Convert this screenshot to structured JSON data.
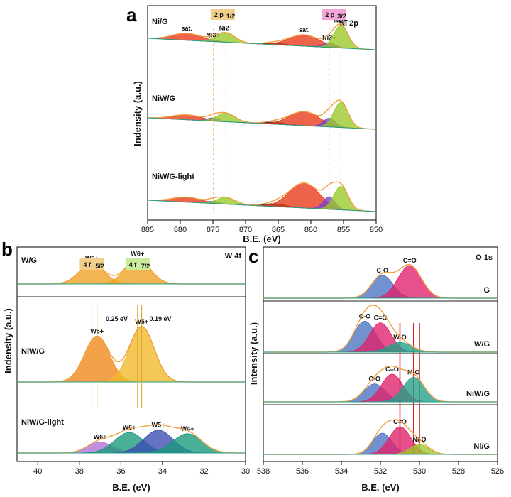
{
  "panels": {
    "a": {
      "letter": "a",
      "corner_label": "Ni 2p",
      "xlabel": "B.E. (eV)",
      "ylabel": "Indensity (a.u.)"
    },
    "b": {
      "letter": "b",
      "corner_label": "W 4f",
      "xlabel": "B.E. (eV)",
      "ylabel": "Indensity (a.u.)"
    },
    "c": {
      "letter": "c",
      "corner_label": "O 1s",
      "xlabel": "B.E. (eV)",
      "ylabel": "Intensity (a.u.)"
    }
  },
  "chart_data": [
    {
      "id": "a",
      "type": "area",
      "title": "Ni 2p",
      "xlabel": "B.E. (eV)",
      "ylabel": "Indensity (a.u.)",
      "x_reversed": true,
      "xlim": [
        885,
        850
      ],
      "xticks": [
        885,
        880,
        875,
        870,
        865,
        860,
        855,
        850
      ],
      "header_tags": [
        {
          "text": "2 p",
          "sub": "1/2",
          "x": 873.5,
          "color": "#f2cf8c"
        },
        {
          "text": "2 p",
          "sub": "3/2",
          "x": 856.5,
          "color": "#f2a6d8"
        }
      ],
      "ref_lines": [
        {
          "x": 874.9,
          "color": "#f0a040"
        },
        {
          "x": 873.0,
          "color": "#f0a040"
        },
        {
          "x": 857.2,
          "color": "#d898e8"
        },
        {
          "x": 855.4,
          "color": "#d898e8"
        }
      ],
      "series": [
        {
          "name": "Ni/G",
          "peaks": [
            {
              "x": 879.0,
              "h": 0.45,
              "w": 2.2,
              "color": "#e83818",
              "label": "sat."
            },
            {
              "x": 875.0,
              "h": 0.1,
              "w": 0.9,
              "color": "#7840d0",
              "label": "Ni3+"
            },
            {
              "x": 873.0,
              "h": 0.6,
              "w": 1.4,
              "color": "#98c828",
              "label": "Ni2+"
            },
            {
              "x": 865.5,
              "h": 0.1,
              "w": 1.6,
              "color": "#202020",
              "label": ""
            },
            {
              "x": 861.0,
              "h": 0.72,
              "w": 2.3,
              "color": "#e83818",
              "label": "sat."
            },
            {
              "x": 857.2,
              "h": 0.3,
              "w": 0.9,
              "color": "#7840d0",
              "label": "Ni3+"
            },
            {
              "x": 855.4,
              "h": 1.45,
              "w": 1.1,
              "color": "#98c828",
              "label": "Ni2+"
            }
          ]
        },
        {
          "name": "NiW/G",
          "peaks": [
            {
              "x": 879.0,
              "h": 0.32,
              "w": 2.2,
              "color": "#e83818",
              "label": ""
            },
            {
              "x": 875.0,
              "h": 0.2,
              "w": 0.9,
              "color": "#7840d0",
              "label": ""
            },
            {
              "x": 873.0,
              "h": 0.55,
              "w": 1.4,
              "color": "#98c828",
              "label": ""
            },
            {
              "x": 865.5,
              "h": 0.13,
              "w": 1.6,
              "color": "#202020",
              "label": ""
            },
            {
              "x": 861.0,
              "h": 0.9,
              "w": 2.3,
              "color": "#e83818",
              "label": ""
            },
            {
              "x": 857.2,
              "h": 0.55,
              "w": 0.9,
              "color": "#7840d0",
              "label": ""
            },
            {
              "x": 855.4,
              "h": 1.6,
              "w": 1.1,
              "color": "#98c828",
              "label": ""
            }
          ]
        },
        {
          "name": "NiW/G-light",
          "peaks": [
            {
              "x": 879.0,
              "h": 0.32,
              "w": 2.2,
              "color": "#e83818",
              "label": ""
            },
            {
              "x": 875.0,
              "h": 0.14,
              "w": 0.9,
              "color": "#7840d0",
              "label": ""
            },
            {
              "x": 873.0,
              "h": 0.42,
              "w": 1.4,
              "color": "#98c828",
              "label": ""
            },
            {
              "x": 865.5,
              "h": 0.18,
              "w": 1.6,
              "color": "#202020",
              "label": ""
            },
            {
              "x": 861.0,
              "h": 1.6,
              "w": 2.3,
              "color": "#e83818",
              "label": ""
            },
            {
              "x": 857.2,
              "h": 0.8,
              "w": 0.9,
              "color": "#7840d0",
              "label": ""
            },
            {
              "x": 855.4,
              "h": 1.5,
              "w": 1.1,
              "color": "#98c828",
              "label": ""
            }
          ]
        }
      ]
    },
    {
      "id": "b",
      "type": "area",
      "title": "W 4f",
      "xlabel": "B.E. (eV)",
      "ylabel": "Indensity (a.u.)",
      "x_reversed": true,
      "xlim": [
        41,
        30
      ],
      "xticks": [
        40,
        38,
        36,
        34,
        32,
        30
      ],
      "header_tags": [
        {
          "text": "4 f",
          "sub": "5/2",
          "x": 37.4,
          "color": "#f2cf8c"
        },
        {
          "text": "4 f",
          "sub": "7/2",
          "x": 35.2,
          "color": "#c8ec9c"
        }
      ],
      "shift_annotations": [
        "0.25 eV",
        "0.19 eV"
      ],
      "series": [
        {
          "name": "W/G",
          "peaks": [
            {
              "x": 37.4,
              "h": 0.85,
              "w": 0.6,
              "color": "#f0a020",
              "label": "W6+"
            },
            {
              "x": 35.2,
              "h": 1.05,
              "w": 0.6,
              "color": "#f0a020",
              "label": "W6+"
            }
          ]
        },
        {
          "name": "NiW/G",
          "peaks": [
            {
              "x": 37.15,
              "h": 1.9,
              "w": 0.6,
              "color": "#f08818",
              "label": "W5+"
            },
            {
              "x": 35.0,
              "h": 2.3,
              "w": 0.6,
              "color": "#f0b828",
              "label": "W5+"
            }
          ]
        },
        {
          "name": "NiW/G-light",
          "peaks": [
            {
              "x": 37.0,
              "h": 0.45,
              "w": 0.6,
              "color": "#b070d8",
              "label": "W6+"
            },
            {
              "x": 35.6,
              "h": 0.85,
              "w": 0.7,
              "color": "#18987a",
              "label": "W6+"
            },
            {
              "x": 34.2,
              "h": 0.95,
              "w": 0.7,
              "color": "#3a4ab0",
              "label": "W5+"
            },
            {
              "x": 32.8,
              "h": 0.8,
              "w": 0.7,
              "color": "#18987a",
              "label": "W4+"
            }
          ]
        }
      ]
    },
    {
      "id": "c",
      "type": "area",
      "title": "O 1s",
      "xlabel": "B.E. (eV)",
      "ylabel": "Intensity (a.u.)",
      "x_reversed": true,
      "xlim": [
        538,
        526
      ],
      "xticks": [
        538,
        536,
        534,
        532,
        530,
        528,
        526
      ],
      "ref_lines": [
        {
          "x": 531.0,
          "color": "#e02020"
        },
        {
          "x": 530.3,
          "color": "#e02020"
        },
        {
          "x": 530.0,
          "color": "#e02020"
        }
      ],
      "series": [
        {
          "name": "G",
          "peaks": [
            {
              "x": 531.9,
              "h": 0.7,
              "w": 0.55,
              "color": "#4a72c0",
              "label": "C-O"
            },
            {
              "x": 530.5,
              "h": 1.0,
              "w": 0.6,
              "color": "#e0206a",
              "label": "C=O"
            }
          ]
        },
        {
          "name": "W/G",
          "peaks": [
            {
              "x": 532.8,
              "h": 0.95,
              "w": 0.55,
              "color": "#4a72c0",
              "label": "C-O"
            },
            {
              "x": 532.0,
              "h": 0.9,
              "w": 0.55,
              "color": "#e0206a",
              "label": "C=O"
            },
            {
              "x": 531.0,
              "h": 0.3,
              "w": 0.6,
              "color": "#20a088",
              "label": "W-O"
            }
          ]
        },
        {
          "name": "NiW/G",
          "peaks": [
            {
              "x": 532.3,
              "h": 0.55,
              "w": 0.55,
              "color": "#4a72c0",
              "label": "C-O"
            },
            {
              "x": 531.4,
              "h": 0.85,
              "w": 0.55,
              "color": "#e0206a",
              "label": "C=O"
            },
            {
              "x": 530.3,
              "h": 0.75,
              "w": 0.55,
              "color": "#20a088",
              "label": "M-O"
            }
          ]
        },
        {
          "name": "Ni/G",
          "peaks": [
            {
              "x": 531.9,
              "h": 0.65,
              "w": 0.5,
              "color": "#4a72c0",
              "label": ""
            },
            {
              "x": 531.0,
              "h": 0.85,
              "w": 0.55,
              "color": "#e0206a",
              "label": "C=O"
            },
            {
              "x": 530.0,
              "h": 0.3,
              "w": 0.5,
              "color": "#98c828",
              "label": "Ni-O"
            }
          ]
        }
      ]
    }
  ]
}
